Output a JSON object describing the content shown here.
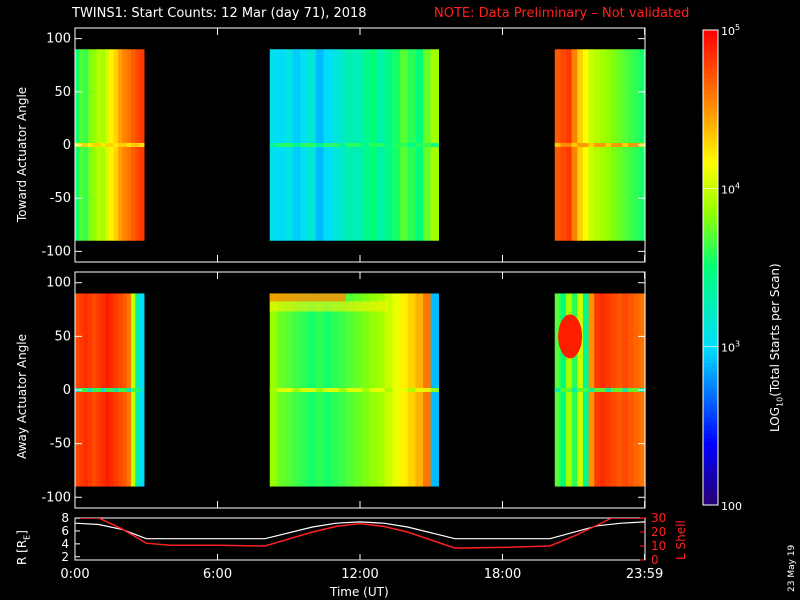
{
  "title": {
    "main": "TWINS1: Start Counts: 12 Mar (day  71), 2018",
    "note": "NOTE: Data Preliminary – Not validated",
    "note_color": "#ff2020"
  },
  "stamp": "23 May 19",
  "colorbar": {
    "label": "LOG10(Total Starts per Scan)",
    "label_parts": [
      "LOG",
      "10",
      "(Total Starts per Scan)"
    ],
    "tick_labels": [
      "100",
      "10^3",
      "10^4",
      "10^5"
    ],
    "tick_display": [
      {
        "base": "100",
        "exp": ""
      },
      {
        "base": "10",
        "exp": "3"
      },
      {
        "base": "10",
        "exp": "4"
      },
      {
        "base": "10",
        "exp": "5"
      }
    ],
    "range_log10": [
      2,
      5
    ],
    "colormap": "rainbow (purple-blue-cyan-green-yellow-orange-red)"
  },
  "chart_data": [
    {
      "type": "heatmap",
      "name": "toward",
      "ylabel": "Toward Actuator Angle",
      "xlim_hours": [
        0,
        24
      ],
      "ylim": [
        -110,
        110
      ],
      "data_ylim": [
        -90,
        90
      ],
      "yticks": [
        100,
        50,
        0,
        -50,
        -100
      ],
      "ytick_labels": [
        "100",
        "50",
        "0",
        "-50",
        "-100"
      ],
      "blocks": [
        {
          "t_start": 0.0,
          "t_end": 2.9,
          "columns_log10": [
            3.55,
            3.7,
            3.62,
            3.78,
            3.85,
            3.95,
            3.9,
            4.05,
            4.2,
            4.3,
            4.45,
            4.55,
            4.6,
            4.68,
            4.75,
            4.8
          ],
          "zero_band_log10": [
            4.2,
            4.3
          ]
        },
        {
          "t_start": 8.2,
          "t_end": 15.3,
          "columns_log10": [
            3.05,
            3.0,
            3.1,
            2.95,
            3.05,
            3.15,
            2.9,
            3.0,
            3.1,
            3.2,
            3.3,
            3.25,
            3.4,
            3.5,
            3.3,
            3.45,
            3.55,
            3.7,
            3.6,
            3.5,
            3.75,
            3.9
          ],
          "zero_band_log10": [
            3.4,
            3.6
          ]
        },
        {
          "t_start": 20.2,
          "t_end": 24.0,
          "columns_log10": [
            4.7,
            4.75,
            4.8,
            4.55,
            4.3,
            4.15,
            4.0,
            3.95,
            3.9,
            3.85,
            3.8,
            3.75,
            3.7,
            3.65,
            3.6,
            3.55
          ],
          "zero_band_log10": [
            4.3,
            4.5
          ]
        }
      ]
    },
    {
      "type": "heatmap",
      "name": "away",
      "ylabel": "Away Actuator Angle",
      "xlim_hours": [
        0,
        24
      ],
      "ylim": [
        -110,
        110
      ],
      "data_ylim": [
        -90,
        90
      ],
      "yticks": [
        100,
        50,
        0,
        -50,
        -100
      ],
      "ytick_labels": [
        "100",
        "50",
        "0",
        "-50",
        "-100"
      ],
      "blocks": [
        {
          "t_start": 0.0,
          "t_end": 2.9,
          "columns_log10": [
            4.75,
            4.8,
            4.85,
            4.8,
            4.75,
            4.8,
            4.85,
            4.9,
            4.85,
            4.8,
            4.75,
            4.7,
            4.6,
            4.0,
            3.3,
            3.0
          ],
          "zero_band_log10": [
            3.2,
            3.6
          ]
        },
        {
          "t_start": 8.2,
          "t_end": 15.3,
          "columns_log10": [
            3.85,
            3.75,
            3.7,
            3.65,
            3.6,
            3.55,
            3.6,
            3.55,
            3.6,
            3.65,
            3.7,
            3.75,
            3.8,
            3.85,
            3.9,
            4.0,
            4.1,
            4.2,
            4.3,
            4.4,
            4.6,
            2.9
          ],
          "top_band_log10": [
            4.2,
            4.5
          ],
          "zero_band_log10": [
            3.9,
            4.1
          ]
        },
        {
          "t_start": 20.2,
          "t_end": 24.0,
          "columns_log10": [
            3.7,
            3.5,
            3.9,
            3.6,
            4.0,
            3.4,
            4.5,
            4.8,
            4.85,
            4.8,
            4.75,
            4.7,
            4.75,
            4.7,
            4.65,
            4.6
          ],
          "blob_log10": 4.9,
          "zero_band_log10": [
            3.3,
            3.7
          ]
        }
      ]
    },
    {
      "type": "line",
      "name": "ephemeris",
      "xlabel": "Time (UT)",
      "xlim_hours": [
        0,
        24
      ],
      "xtick_hours": [
        0,
        6,
        12,
        18,
        23.983
      ],
      "xtick_labels": [
        "0:00",
        "6:00",
        "12:00",
        "18:00",
        "23:59"
      ],
      "left_axis": {
        "label_parts": [
          "R [R",
          "E",
          "]"
        ],
        "ylim": [
          1.5,
          8
        ],
        "ticks": [
          8,
          6,
          4,
          2
        ],
        "tick_labels": [
          "8",
          "6",
          "4",
          "2"
        ]
      },
      "right_axis": {
        "label": "L Shell",
        "color": "#ff2020",
        "ylim": [
          0,
          30
        ],
        "ticks": [
          30,
          20,
          10,
          0
        ],
        "tick_labels": [
          "30",
          "20",
          "10",
          "0"
        ]
      },
      "series": [
        {
          "axis": "left",
          "color": "#ffffff",
          "x": [
            0,
            1,
            2,
            3,
            4,
            6,
            8,
            10,
            11,
            12,
            13,
            14,
            16,
            18,
            20,
            21,
            22,
            23,
            24
          ],
          "y": [
            7.2,
            7.0,
            6.2,
            4.8,
            4.8,
            4.8,
            4.8,
            6.6,
            7.2,
            7.4,
            7.2,
            6.6,
            4.8,
            4.8,
            4.8,
            5.8,
            6.8,
            7.2,
            7.4
          ]
        },
        {
          "axis": "right",
          "color": "#ff2020",
          "x": [
            0,
            1,
            2,
            3,
            4,
            6,
            8,
            10,
            11,
            12,
            13,
            14,
            16,
            18,
            20,
            21,
            22,
            22.6,
            24
          ],
          "y": [
            30,
            30,
            22,
            12,
            10.5,
            10.5,
            10,
            20,
            24,
            26,
            24,
            20,
            8.5,
            9,
            10,
            17,
            25,
            30,
            30
          ]
        }
      ]
    }
  ]
}
